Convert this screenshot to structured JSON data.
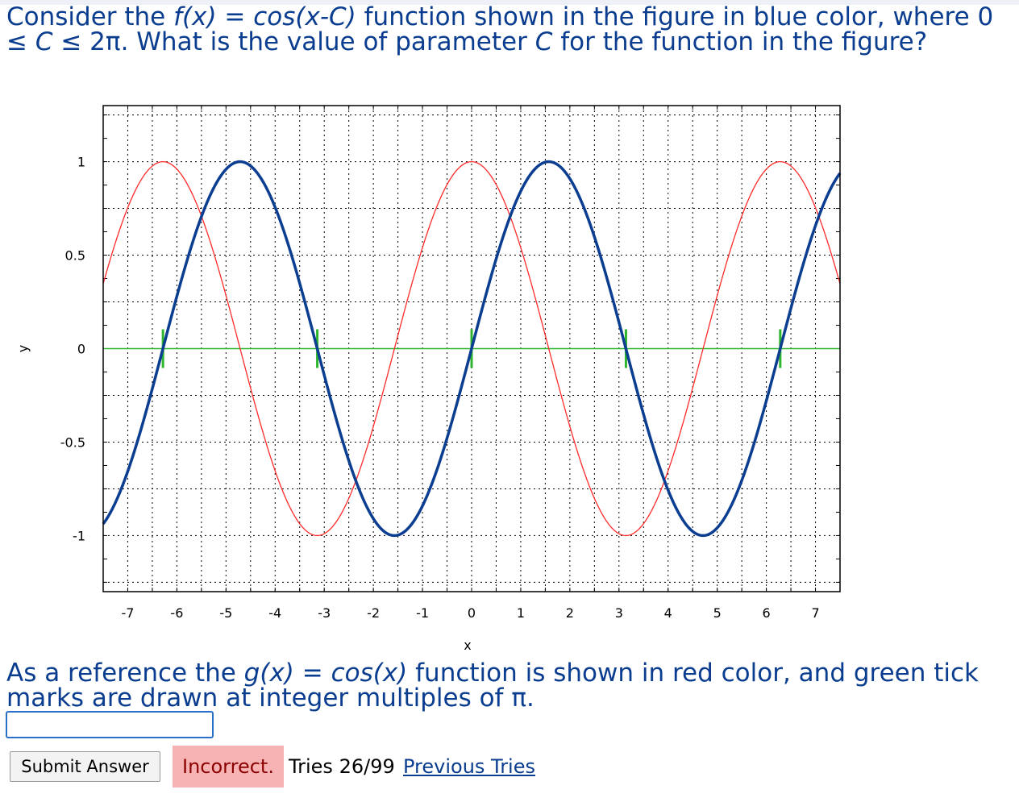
{
  "question": {
    "p1": "Consider the ",
    "fx": "f(x)",
    "eq": " = ",
    "fdef": "cos(x-C)",
    "p2": " function shown in the figure in blue color, where 0 ≤ ",
    "c1": "C",
    "p3": " ≤ 2π. What is the value of parameter ",
    "c2": "C",
    "p4": " for the function in the figure?"
  },
  "reference": {
    "p1": "As a reference the ",
    "gx": "g(x)",
    "eq": " = ",
    "gdef": "cos(x)",
    "p2": " function is shown in red color, and green tick marks are drawn at integer multiples of π."
  },
  "answer": {
    "value": "",
    "placeholder": ""
  },
  "submit_label": "Submit Answer",
  "status": "Incorrect.",
  "tries_text": "Tries 26/99",
  "previous_tries_label": "Previous Tries",
  "colors": {
    "blue_curve": "#0b3d91",
    "red_curve": "#ff2a2a",
    "green_marks": "#2db52d",
    "text": "#0a3d8f",
    "incorrect_bg": "#f7b3b3"
  },
  "chart_data": {
    "type": "line",
    "xlabel": "x",
    "ylabel": "y",
    "xlim": [
      -7.5,
      7.5
    ],
    "ylim": [
      -1.3,
      1.3
    ],
    "xticks": [
      -7,
      -6,
      -5,
      -4,
      -3,
      -2,
      -1,
      0,
      1,
      2,
      3,
      4,
      5,
      6,
      7
    ],
    "yticks": [
      -1,
      -0.5,
      0,
      0.5,
      1
    ],
    "grid": true,
    "series": [
      {
        "name": "",
        "color": "#0b3d91",
        "function": "cos(x-C)",
        "C": 1.57,
        "x": [
          -7.5,
          7.5
        ]
      },
      {
        "name": "",
        "color": "#ff2a2a",
        "function": "cos(x)",
        "x": [
          -7.5,
          7.5
        ]
      }
    ],
    "reference_line": {
      "y": 0,
      "color": "#2db52d"
    },
    "tick_marks": {
      "x": [
        -6.283,
        -3.1416,
        0,
        3.1416,
        6.283
      ],
      "color": "#2db52d"
    }
  }
}
